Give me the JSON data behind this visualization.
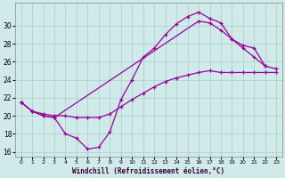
{
  "xlabel": "Windchill (Refroidissement éolien,°C)",
  "curve1_x": [
    0,
    1,
    2,
    3,
    4,
    5,
    6,
    7,
    8,
    9,
    10,
    11,
    12,
    13,
    14,
    15,
    16,
    17,
    18,
    19,
    20,
    21,
    22
  ],
  "curve1_y": [
    21.5,
    20.5,
    20.0,
    19.8,
    18.0,
    17.5,
    16.3,
    16.5,
    18.2,
    21.8,
    24.0,
    26.5,
    27.5,
    29.0,
    30.2,
    31.0,
    31.5,
    30.8,
    30.3,
    28.5,
    27.8,
    27.5,
    25.5
  ],
  "curve2_x": [
    0,
    1,
    2,
    3,
    16,
    17,
    18,
    19,
    20,
    21,
    22,
    23
  ],
  "curve2_y": [
    21.5,
    20.5,
    20.0,
    19.8,
    30.5,
    30.3,
    29.5,
    28.5,
    27.5,
    26.5,
    25.5,
    25.2
  ],
  "curve3_x": [
    0,
    1,
    2,
    3,
    4,
    5,
    6,
    7,
    8,
    9,
    10,
    11,
    12,
    13,
    14,
    15,
    16,
    17,
    18,
    19,
    20,
    21,
    22,
    23
  ],
  "curve3_y": [
    21.5,
    20.5,
    20.2,
    20.0,
    20.0,
    19.8,
    19.8,
    19.8,
    20.2,
    21.0,
    21.8,
    22.5,
    23.2,
    23.8,
    24.2,
    24.5,
    24.8,
    25.0,
    24.8,
    24.8,
    24.8,
    24.8,
    24.8,
    24.8
  ],
  "line_color": "#990099",
  "bg_color": "#d0eaea",
  "grid_color": "#aacccc",
  "ylim": [
    15.5,
    32.5
  ],
  "xlim": [
    -0.5,
    23.5
  ],
  "yticks": [
    16,
    18,
    20,
    22,
    24,
    26,
    28,
    30
  ],
  "xticks": [
    0,
    1,
    2,
    3,
    4,
    5,
    6,
    7,
    8,
    9,
    10,
    11,
    12,
    13,
    14,
    15,
    16,
    17,
    18,
    19,
    20,
    21,
    22,
    23
  ]
}
